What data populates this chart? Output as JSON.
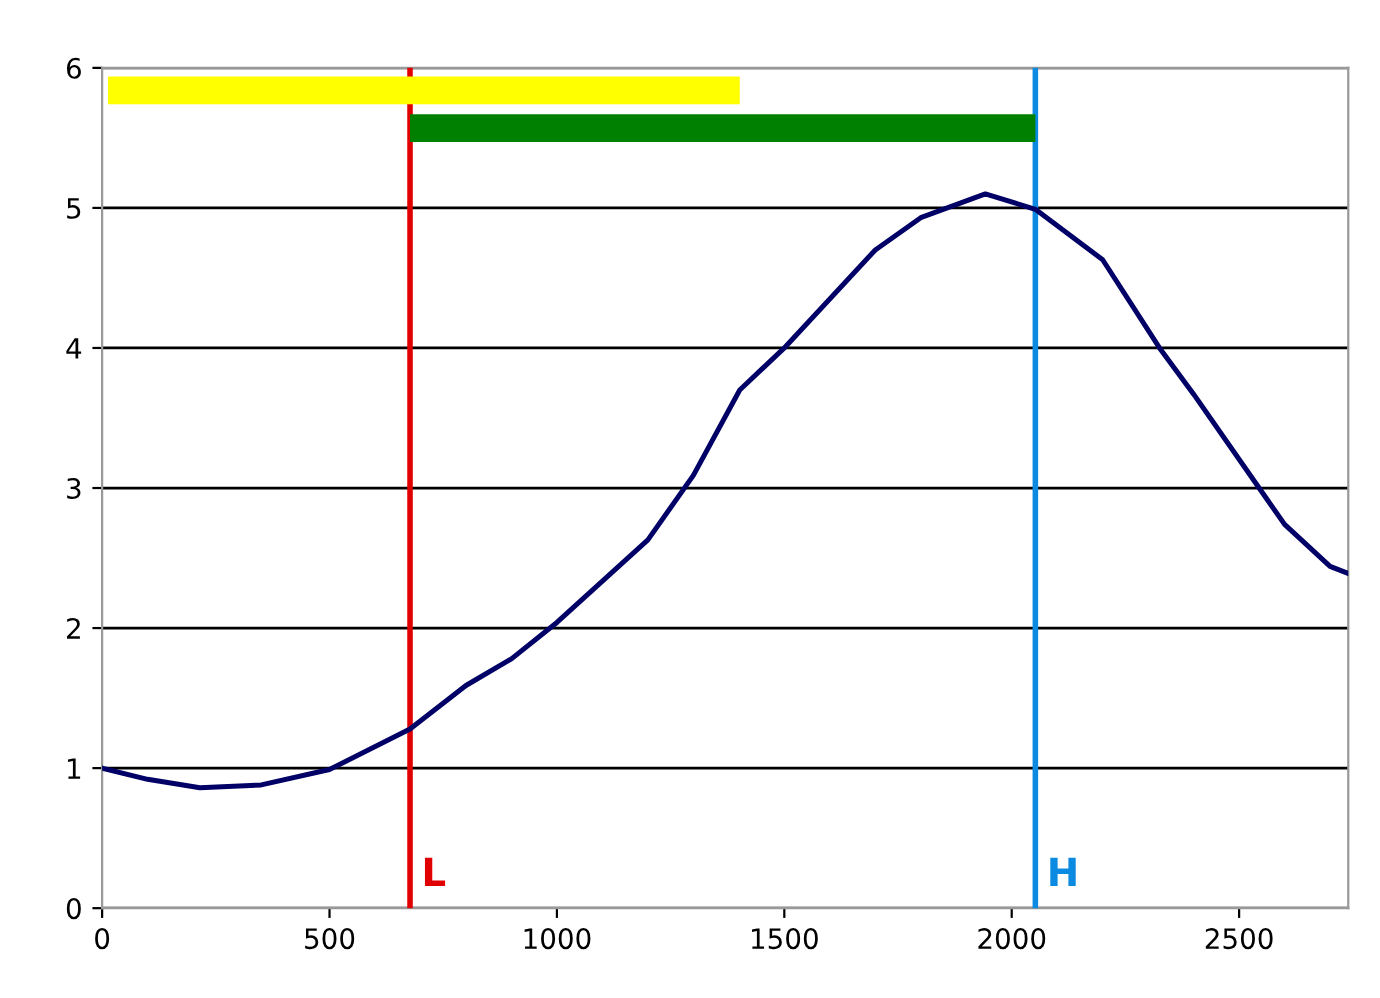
{
  "chart_data": {
    "type": "line",
    "series": [
      {
        "color": "#000066",
        "x": [
          0,
          100,
          215,
          350,
          500,
          677,
          800,
          900,
          1000,
          1200,
          1300,
          1402,
          1503,
          1700,
          1800,
          1942,
          2052,
          2200,
          2325,
          2400,
          2544,
          2600,
          2700,
          2740
        ],
        "values": [
          1.0,
          0.92,
          0.86,
          0.88,
          0.99,
          1.28,
          1.59,
          1.78,
          2.04,
          2.63,
          3.09,
          3.7,
          4.01,
          4.7,
          4.93,
          5.1,
          4.99,
          4.63,
          4.0,
          3.67,
          3.0,
          2.74,
          2.44,
          2.39
        ]
      },
      {
        "type": "step",
        "color": "#ffff00",
        "x": [
          13,
          1402
        ],
        "values": [
          5.84,
          5.84
        ]
      },
      {
        "type": "step",
        "color": "#008000",
        "x": [
          677,
          2052
        ],
        "values": [
          5.57,
          5.57
        ]
      }
    ],
    "xlim": [
      0,
      2740
    ],
    "ylim": [
      0,
      6
    ],
    "xticks": [
      0,
      500,
      1000,
      1500,
      2000,
      2500
    ],
    "yticks": [
      0,
      1,
      2,
      3,
      4,
      5,
      6
    ],
    "grid": "y",
    "ref_lines": [
      {
        "axis": "x",
        "value": 677,
        "label": "L",
        "color": "#e00000"
      },
      {
        "axis": "x",
        "value": 2052,
        "label": "H",
        "color": "#0a8ae0"
      }
    ]
  }
}
